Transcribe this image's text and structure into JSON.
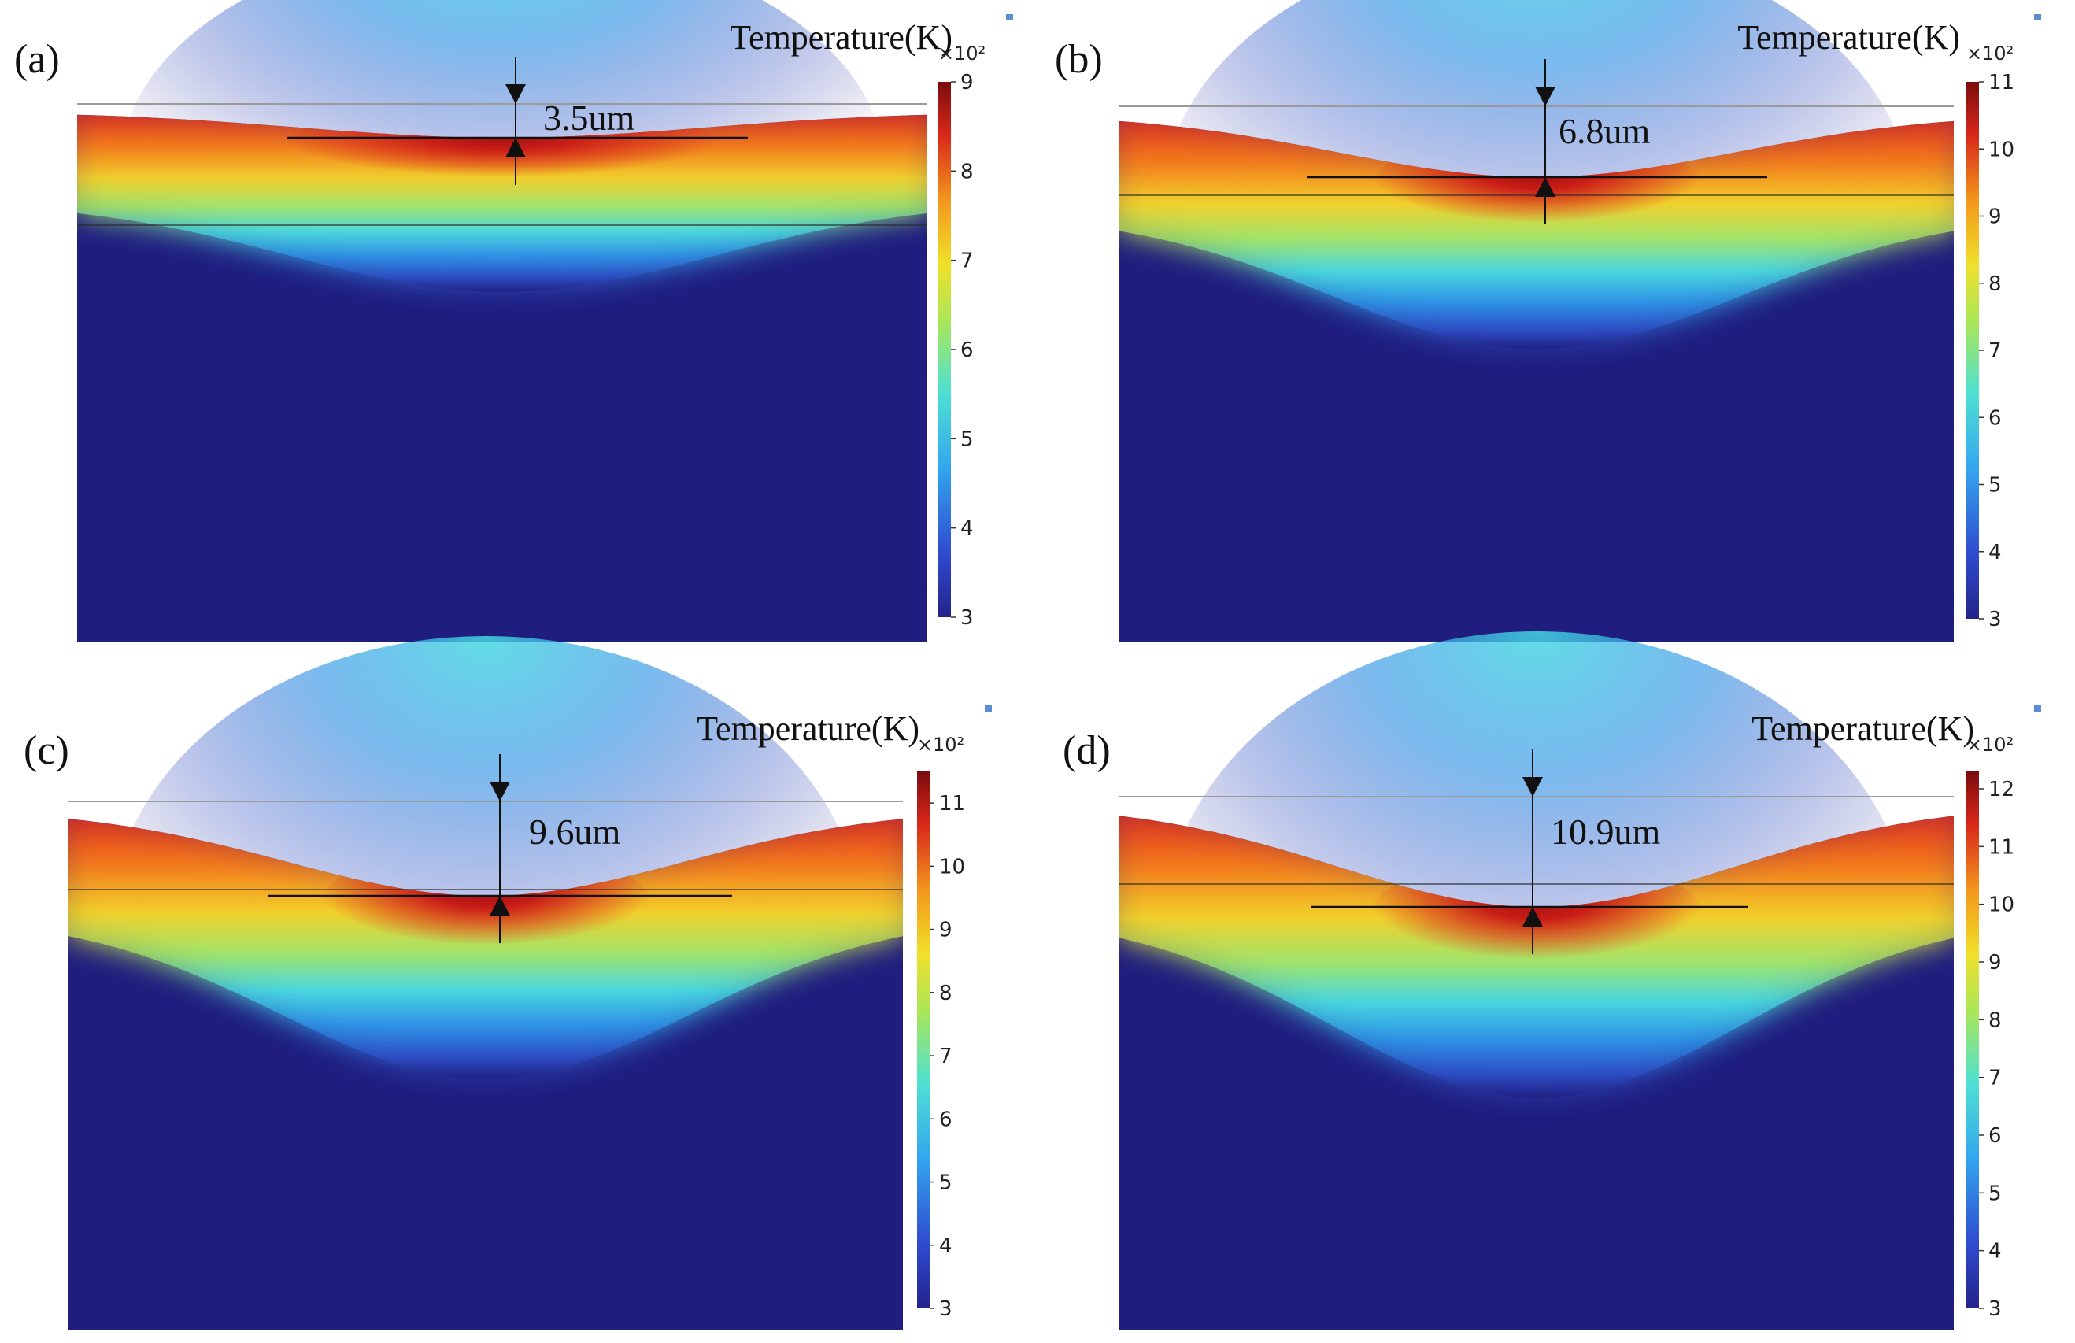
{
  "figure": {
    "panels": [
      {
        "id": "a",
        "label": "(a)",
        "colorbar": {
          "title": "Temperature(K)",
          "multiplier": "×10²",
          "ticks": [
            "3",
            "4",
            "5",
            "6",
            "7",
            "8",
            "9"
          ],
          "min": 3,
          "max": 9
        },
        "depth_label": "3.5um",
        "depth_um": 3.5
      },
      {
        "id": "b",
        "label": "(b)",
        "colorbar": {
          "title": "Temperature(K)",
          "multiplier": "×10²",
          "ticks": [
            "3",
            "4",
            "5",
            "6",
            "7",
            "8",
            "9",
            "10",
            "11"
          ],
          "min": 3,
          "max": 11
        },
        "depth_label": "6.8um",
        "depth_um": 6.8
      },
      {
        "id": "c",
        "label": "(c)",
        "colorbar": {
          "title": "Temperature(K)",
          "multiplier": "×10²",
          "ticks": [
            "3",
            "4",
            "5",
            "6",
            "7",
            "8",
            "9",
            "10",
            "11"
          ],
          "min": 3,
          "max": 11.5
        },
        "depth_label": "9.6um",
        "depth_um": 9.6
      },
      {
        "id": "d",
        "label": "(d)",
        "colorbar": {
          "title": "Temperature(K)",
          "multiplier": "×10²",
          "ticks": [
            "3",
            "4",
            "5",
            "6",
            "7",
            "8",
            "9",
            "10",
            "11",
            "12"
          ],
          "min": 3,
          "max": 12.3
        },
        "depth_label": "10.9um",
        "depth_um": 10.9
      }
    ],
    "colors": {
      "substrate": "#1f1d7e",
      "cold": "#2a2a9a",
      "cyan": "#3fd4e6",
      "green": "#7fe08a",
      "yellow": "#f2d12a",
      "orange": "#f07a1c",
      "red": "#d8241a",
      "darkred": "#8a0d0d"
    }
  }
}
